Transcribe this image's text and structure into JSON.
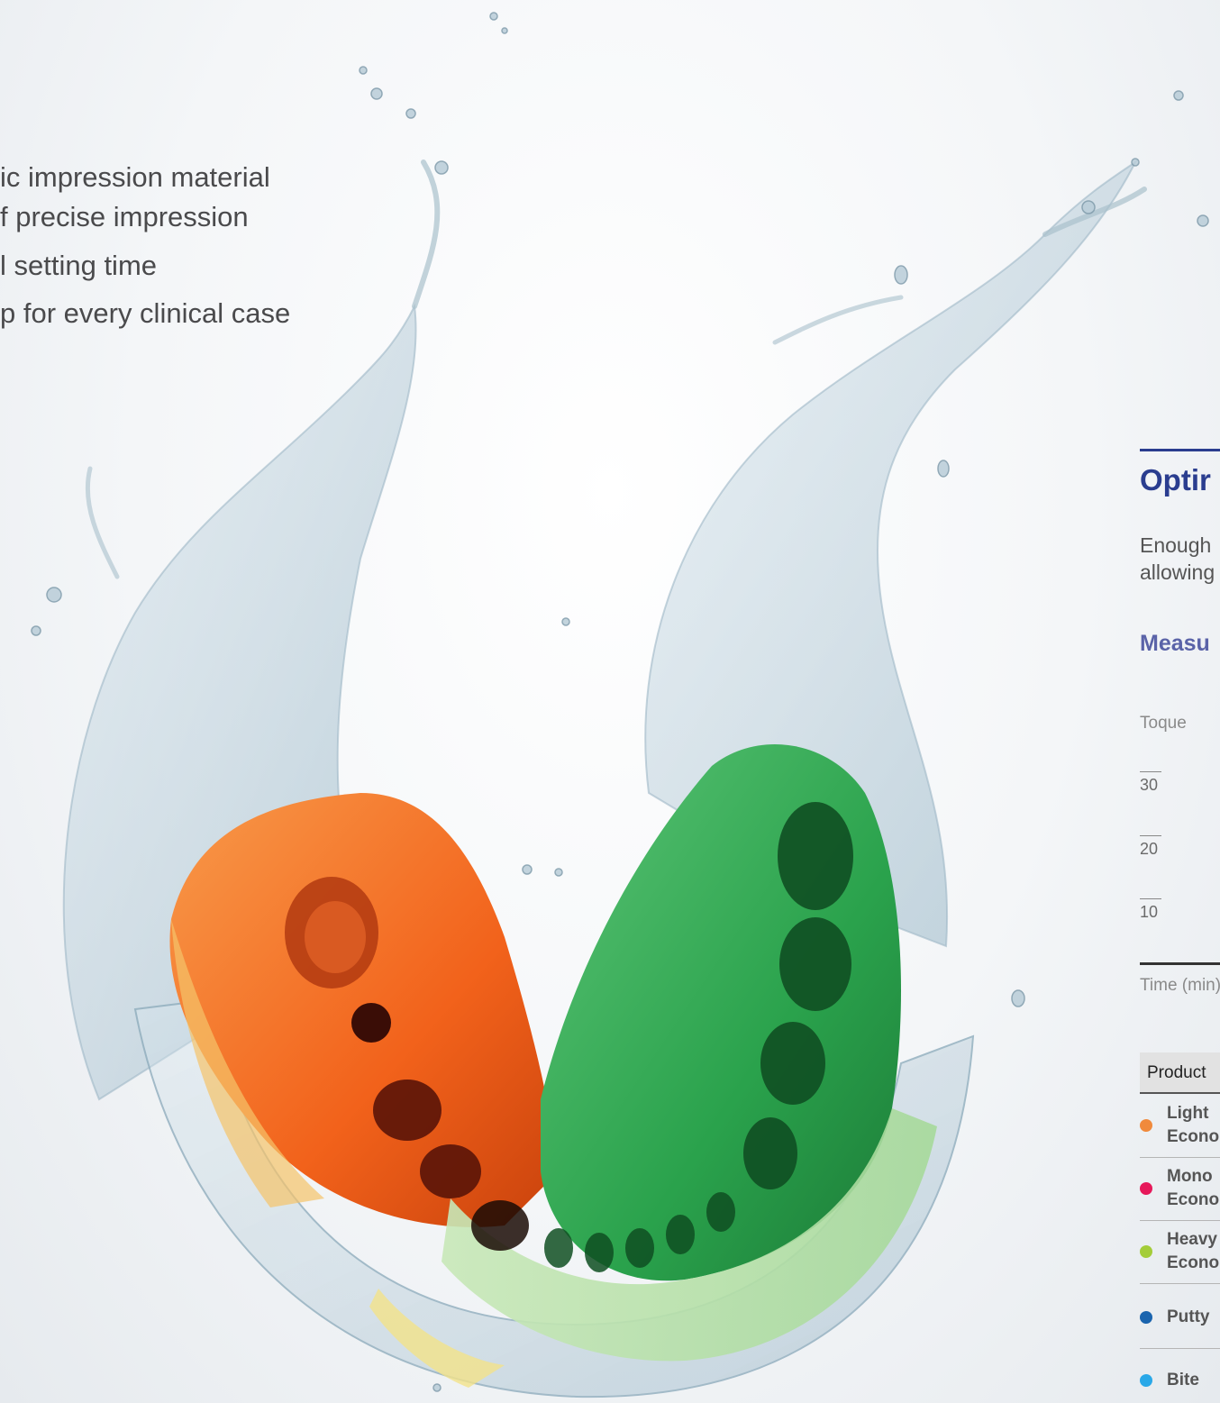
{
  "bullets": [
    "ic impression material",
    "f precise impression",
    "l setting time",
    "p for every clinical case"
  ],
  "panel": {
    "heading": "Optir",
    "intro_line1": "Enough",
    "intro_line2": "allowing",
    "subheading": "Measu"
  },
  "chart": {
    "y_axis_title": "Toque",
    "y_ticks": [
      "30",
      "20",
      "10"
    ],
    "x_axis_title": "Time (min)"
  },
  "table": {
    "header": "Product",
    "rows": [
      {
        "line1": "Light",
        "line2": "Econo",
        "color": "#f08a3c"
      },
      {
        "line1": "Mono",
        "line2": "Econo",
        "color": "#e6185a"
      },
      {
        "line1": "Heavy",
        "line2": "Econo",
        "color": "#a4cd39"
      },
      {
        "line1": "Putty",
        "line2": "",
        "color": "#1a64ae"
      },
      {
        "line1": "Bite",
        "line2": "",
        "color": "#29a8e8"
      }
    ]
  },
  "colors": {
    "accent_navy": "#2a3d8f",
    "accent_violet": "#5a63a8",
    "impression_orange": "#f26a21",
    "impression_green": "#2fae55"
  }
}
